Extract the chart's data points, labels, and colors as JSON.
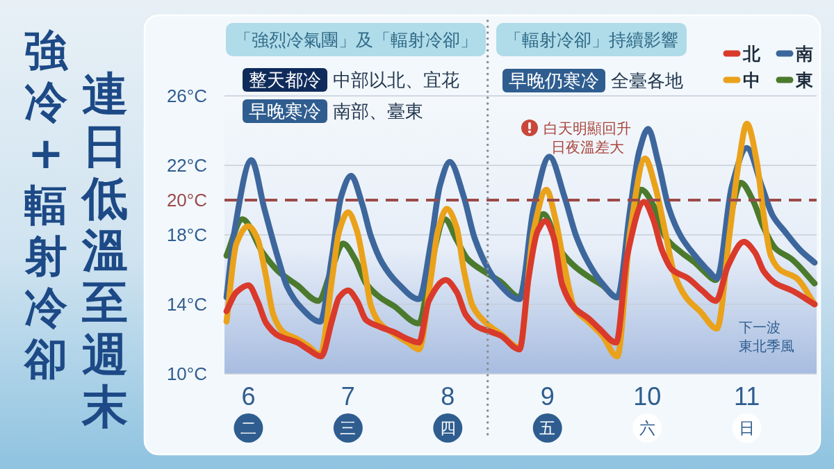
{
  "chart_data": {
    "type": "line",
    "title": "強冷+輻射冷卻",
    "subtitle": "連日低溫至週末",
    "series": [
      {
        "name": "北",
        "color": "#d93a2b",
        "x": [
          5.78,
          5.88,
          6.0,
          6.09,
          6.18,
          6.3,
          6.49,
          6.6,
          6.73,
          6.84,
          6.91,
          7.0,
          7.09,
          7.18,
          7.32,
          7.46,
          7.6,
          7.71,
          7.81,
          7.98,
          8.09,
          8.18,
          8.3,
          8.44,
          8.53,
          8.72,
          8.81,
          8.9,
          8.98,
          9.06,
          9.15,
          9.27,
          9.41,
          9.52,
          9.69,
          9.8,
          9.97,
          10.06,
          10.15,
          10.25,
          10.41,
          10.55,
          10.69,
          10.81,
          10.97,
          11.08,
          11.17,
          11.29,
          11.45,
          11.68
        ],
        "values": [
          13.6,
          14.7,
          15.1,
          14.2,
          12.9,
          12.2,
          11.8,
          11.4,
          11.0,
          13.1,
          14.4,
          14.8,
          14.2,
          13.1,
          12.7,
          12.4,
          12.0,
          11.8,
          14.2,
          15.4,
          14.7,
          13.4,
          12.7,
          12.4,
          12.2,
          11.4,
          15.5,
          18.2,
          18.8,
          17.9,
          15.1,
          13.8,
          13.2,
          12.6,
          11.8,
          16.8,
          19.9,
          18.9,
          17.1,
          16.0,
          15.5,
          14.8,
          14.2,
          16.2,
          17.6,
          17.0,
          15.9,
          15.2,
          14.8,
          14.0
        ]
      },
      {
        "name": "中",
        "color": "#eaa21b",
        "x": [
          5.78,
          5.88,
          6.0,
          6.09,
          6.17,
          6.25,
          6.35,
          6.49,
          6.6,
          6.72,
          6.84,
          6.91,
          7.0,
          7.09,
          7.16,
          7.23,
          7.32,
          7.46,
          7.6,
          7.71,
          7.83,
          7.9,
          7.99,
          8.09,
          8.16,
          8.25,
          8.39,
          8.53,
          8.72,
          8.86,
          8.99,
          9.08,
          9.17,
          9.27,
          9.41,
          9.55,
          9.7,
          9.83,
          9.98,
          10.08,
          10.18,
          10.27,
          10.39,
          10.53,
          10.7,
          10.83,
          10.92,
          11.0,
          11.1,
          11.17,
          11.24,
          11.33,
          11.5,
          11.68
        ],
        "values": [
          13.0,
          17.5,
          18.5,
          17.8,
          15.8,
          13.4,
          12.4,
          12.0,
          11.6,
          11.1,
          15.5,
          18.2,
          19.3,
          18.2,
          16.2,
          13.9,
          12.9,
          12.3,
          11.8,
          11.4,
          15.5,
          18.2,
          19.5,
          18.4,
          16.0,
          13.9,
          12.9,
          12.3,
          11.5,
          18.2,
          20.6,
          18.9,
          16.2,
          13.8,
          13.0,
          12.2,
          11.0,
          18.2,
          22.4,
          20.8,
          18.2,
          15.8,
          14.4,
          13.6,
          12.6,
          18.2,
          22.2,
          24.4,
          22.2,
          19.1,
          16.8,
          16.0,
          15.5,
          14.0
        ]
      },
      {
        "name": "南",
        "color": "#3d679c",
        "x": [
          5.78,
          5.86,
          6.03,
          6.16,
          6.3,
          6.39,
          6.53,
          6.72,
          6.84,
          6.93,
          7.03,
          7.14,
          7.23,
          7.34,
          7.5,
          7.71,
          7.83,
          7.92,
          8.02,
          8.16,
          8.27,
          8.41,
          8.48,
          8.72,
          8.86,
          9.02,
          9.17,
          9.29,
          9.41,
          9.55,
          9.7,
          9.83,
          9.92,
          10.01,
          10.11,
          10.22,
          10.34,
          10.48,
          10.62,
          10.7,
          10.85,
          11.0,
          11.15,
          11.26,
          11.38,
          11.54,
          11.68
        ],
        "values": [
          14.4,
          18.2,
          22.3,
          19.5,
          16.6,
          15.0,
          13.8,
          13.0,
          16.8,
          20.2,
          21.4,
          19.8,
          17.9,
          16.4,
          15.2,
          14.3,
          17.5,
          20.8,
          22.2,
          20.2,
          17.8,
          16.0,
          15.4,
          14.3,
          19.5,
          22.5,
          20.2,
          17.9,
          16.4,
          15.2,
          14.4,
          19.5,
          22.8,
          24.1,
          22.2,
          19.5,
          17.9,
          16.8,
          15.9,
          15.5,
          20.8,
          23.0,
          20.8,
          19.1,
          18.2,
          17.1,
          16.4
        ]
      },
      {
        "name": "東",
        "color": "#4b7a2d",
        "x": [
          5.78,
          5.94,
          6.14,
          6.3,
          6.49,
          6.7,
          6.84,
          6.95,
          7.07,
          7.18,
          7.32,
          7.46,
          7.71,
          7.83,
          7.97,
          8.09,
          8.2,
          8.39,
          8.53,
          8.72,
          8.83,
          8.96,
          9.13,
          9.27,
          9.41,
          9.55,
          9.7,
          9.83,
          9.94,
          10.08,
          10.18,
          10.34,
          10.48,
          10.57,
          10.69,
          10.83,
          10.94,
          11.06,
          11.17,
          11.29,
          11.45,
          11.68
        ],
        "values": [
          16.8,
          18.9,
          17.0,
          15.9,
          15.1,
          14.2,
          16.1,
          17.5,
          16.6,
          15.2,
          14.4,
          13.9,
          12.9,
          16.2,
          18.9,
          17.7,
          16.6,
          15.8,
          15.3,
          14.4,
          17.5,
          19.2,
          17.1,
          16.2,
          15.6,
          15.1,
          14.4,
          18.2,
          20.6,
          19.5,
          17.9,
          17.0,
          16.4,
          15.9,
          15.4,
          18.9,
          21.0,
          20.0,
          18.4,
          17.2,
          16.6,
          15.2
        ]
      }
    ],
    "xlim": [
      5.76,
      11.7
    ],
    "xticks": [
      {
        "value": 6,
        "label": "6\n二"
      },
      {
        "value": 7,
        "label": "7\n三"
      },
      {
        "value": 8,
        "label": "8\n四"
      },
      {
        "value": 9,
        "label": "9\n五"
      },
      {
        "value": 10,
        "label": "10\n六"
      },
      {
        "value": 11,
        "label": "11\n日"
      }
    ],
    "ylim": [
      10,
      26
    ],
    "yticks": [
      {
        "value": 10,
        "label": "10°C"
      },
      {
        "value": 14,
        "label": "14°C"
      },
      {
        "value": 18,
        "label": "18°C"
      },
      {
        "value": 22,
        "label": "22°C"
      },
      {
        "value": 26,
        "label": "26°C"
      }
    ],
    "grid": "y",
    "legend": "top right",
    "line_style": "solid",
    "ref_lines": [
      {
        "axis": "y",
        "value": 20,
        "label": "20°C",
        "color": "#9b4a4a",
        "line_style": "dashed"
      },
      {
        "axis": "x",
        "value": 8.4,
        "color": "#8a8f96",
        "line_style": "dotted"
      }
    ],
    "annotations": [
      "「強烈冷氣團」及「輻射冷卻」",
      "「輻射冷卻」持續影響",
      "整天都冷",
      "中部以北、宜花",
      "早晚寒冷",
      "南部、臺東",
      "早晚仍寒冷",
      "全臺各地",
      "白天明顯回升",
      "日夜溫差大",
      "下一波",
      "東北季風"
    ]
  }
}
